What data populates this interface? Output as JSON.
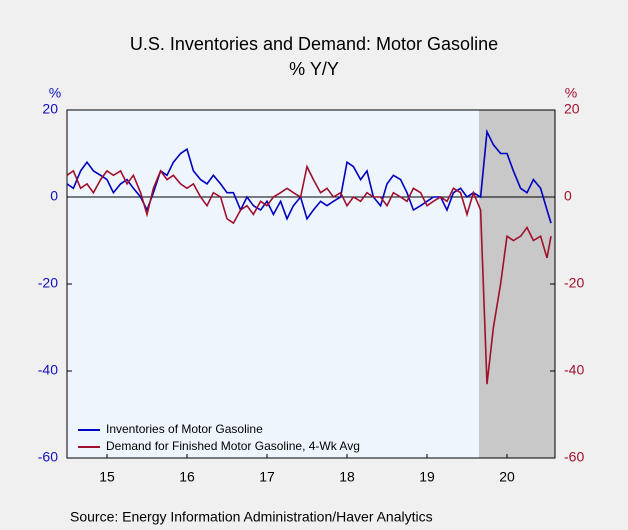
{
  "chart_data": {
    "type": "line",
    "title": "U.S. Inventories and Demand: Motor Gasoline",
    "subtitle": "% Y/Y",
    "y_label": "%",
    "y2_label": "%",
    "source": "Source:  Energy Information Administration/Haver Analytics",
    "x": [
      15,
      15.08,
      15.17,
      15.25,
      15.33,
      15.42,
      15.5,
      15.58,
      15.67,
      15.75,
      15.83,
      15.92,
      16,
      16.08,
      16.17,
      16.25,
      16.33,
      16.42,
      16.5,
      16.58,
      16.67,
      16.75,
      16.83,
      16.92,
      17,
      17.08,
      17.17,
      17.25,
      17.33,
      17.42,
      17.5,
      17.58,
      17.67,
      17.75,
      17.83,
      17.92,
      18,
      18.08,
      18.17,
      18.25,
      18.33,
      18.42,
      18.5,
      18.58,
      18.67,
      18.75,
      18.83,
      18.92,
      19,
      19.08,
      19.17,
      19.25,
      19.33,
      19.42,
      19.5,
      19.58,
      19.67,
      19.75,
      19.83,
      19.92,
      20,
      20.08,
      20.17,
      20.25,
      20.33,
      20.42,
      20.5,
      20.58,
      20.67,
      20.75,
      20.83,
      20.92,
      21,
      21.05
    ],
    "xlim": [
      15,
      21.1
    ],
    "xticks": [
      {
        "value": 15.5,
        "label": "15"
      },
      {
        "value": 16.5,
        "label": "16"
      },
      {
        "value": 17.5,
        "label": "17"
      },
      {
        "value": 18.5,
        "label": "18"
      },
      {
        "value": 19.5,
        "label": "19"
      },
      {
        "value": 20.5,
        "label": "20"
      }
    ],
    "ylim": [
      -60,
      20
    ],
    "yticks": [
      -60,
      -40,
      -20,
      0,
      20
    ],
    "y_color": "#1010c0",
    "y2lim": [
      -60,
      20
    ],
    "y2ticks": [
      -60,
      -40,
      -20,
      0,
      20
    ],
    "y2_color": "#a0102c",
    "shaded_span": [
      20.15,
      21.1
    ],
    "shade_color": "#c8c8c8",
    "legend": "lower left",
    "series": [
      {
        "name": "Inventories of Motor Gasoline",
        "color": "#0000c0",
        "values": [
          3,
          2,
          6,
          8,
          6,
          5,
          4,
          1,
          3,
          4,
          2,
          0,
          -3,
          1,
          6,
          5,
          8,
          10,
          11,
          6,
          4,
          3,
          5,
          3,
          1,
          1,
          -3,
          0,
          -2,
          -3,
          -1,
          -4,
          -1,
          -5,
          -2,
          0,
          -5,
          -3,
          -1,
          -2,
          -1,
          0,
          8,
          7,
          4,
          6,
          0,
          -2,
          3,
          5,
          4,
          1,
          -3,
          -2,
          -1,
          0,
          0,
          -3,
          1,
          2,
          0,
          1,
          0,
          15,
          12,
          10,
          10,
          6,
          2,
          1,
          4,
          2,
          -3,
          -6
        ]
      },
      {
        "name": "Demand for Finished Motor Gasoline, 4-Wk Avg",
        "color": "#a0102c",
        "axis": "y2",
        "values": [
          5,
          6,
          2,
          3,
          1,
          4,
          6,
          5,
          6,
          3,
          5,
          1,
          -4,
          2,
          6,
          4,
          5,
          3,
          2,
          3,
          0,
          -2,
          1,
          0,
          -5,
          -6,
          -3,
          -2,
          -4,
          -1,
          -2,
          0,
          1,
          2,
          1,
          0,
          7,
          4,
          1,
          2,
          0,
          1,
          -2,
          0,
          -1,
          1,
          0,
          0,
          -2,
          1,
          0,
          -1,
          2,
          1,
          -2,
          -1,
          0,
          -1,
          2,
          1,
          -4,
          1,
          -3,
          -43,
          -30,
          -20,
          -9,
          -10,
          -9,
          -7,
          -10,
          -9,
          -14,
          -9
        ]
      }
    ]
  }
}
